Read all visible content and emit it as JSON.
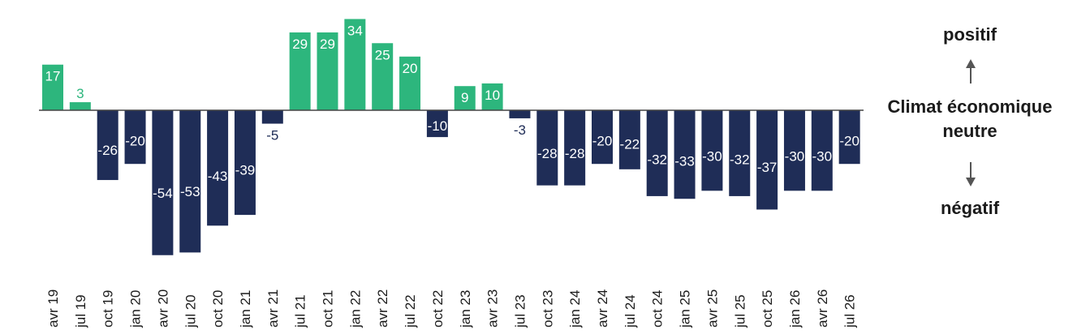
{
  "chart_data": {
    "type": "bar",
    "categories": [
      "avr 19",
      "jul 19",
      "oct 19",
      "jan 20",
      "avr 20",
      "jul 20",
      "oct 20",
      "jan 21",
      "avr 21",
      "jul 21",
      "oct 21",
      "jan 22",
      "avr 22",
      "jul 22",
      "oct 22",
      "jan 23",
      "avr 23",
      "jul 23",
      "oct 23",
      "jan 24",
      "avr 24",
      "jul 24",
      "oct 24",
      "jan 25",
      "avr 25",
      "jul 25",
      "oct 25",
      "jan 26",
      "avr 26",
      "jul 26"
    ],
    "values": [
      17,
      3,
      -26,
      -20,
      -54,
      -53,
      -43,
      -39,
      -5,
      29,
      29,
      34,
      25,
      20,
      -10,
      9,
      10,
      -3,
      -28,
      -28,
      -20,
      -22,
      -32,
      -33,
      -30,
      -32,
      -37,
      -30,
      -30,
      -20
    ],
    "colors": {
      "positive": "#2db67d",
      "negative": "#1f2d57",
      "axis": "#444444"
    }
  },
  "legend": {
    "positive": "positif",
    "neutral_line1": "Climat économique",
    "neutral_line2": "neutre",
    "negative": "négatif",
    "up_arrow_icon": "arrow-up-icon",
    "down_arrow_icon": "arrow-down-icon"
  }
}
